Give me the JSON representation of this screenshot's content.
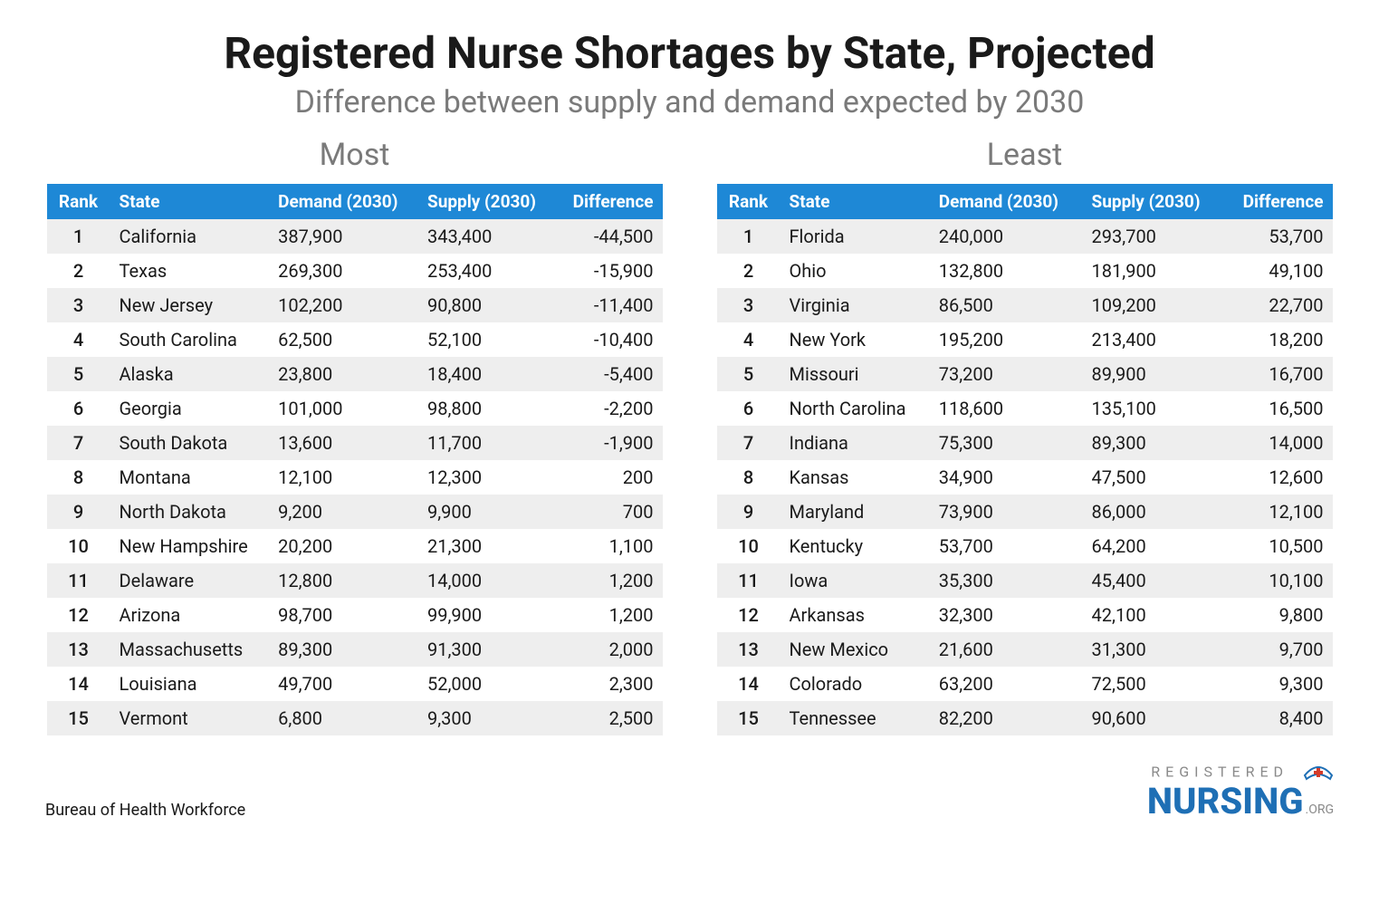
{
  "title": "Registered Nurse Shortages by State, Projected",
  "subtitle": "Difference between supply and demand expected by 2030",
  "source": "Bureau of Health Workforce",
  "logo": {
    "top": "REGISTERED",
    "main": "NURSING",
    "suffix": ".ORG"
  },
  "columns": {
    "rank": "Rank",
    "state": "State",
    "demand": "Demand (2030)",
    "supply": "Supply (2030)",
    "difference": "Difference"
  },
  "tables": {
    "most": {
      "title": "Most",
      "rows": [
        {
          "rank": "1",
          "state": "California",
          "demand": "387,900",
          "supply": "343,400",
          "diff": "-44,500"
        },
        {
          "rank": "2",
          "state": "Texas",
          "demand": "269,300",
          "supply": "253,400",
          "diff": "-15,900"
        },
        {
          "rank": "3",
          "state": "New Jersey",
          "demand": "102,200",
          "supply": "90,800",
          "diff": "-11,400"
        },
        {
          "rank": "4",
          "state": "South Carolina",
          "demand": "62,500",
          "supply": "52,100",
          "diff": "-10,400"
        },
        {
          "rank": "5",
          "state": "Alaska",
          "demand": "23,800",
          "supply": "18,400",
          "diff": "-5,400"
        },
        {
          "rank": "6",
          "state": "Georgia",
          "demand": "101,000",
          "supply": "98,800",
          "diff": "-2,200"
        },
        {
          "rank": "7",
          "state": "South Dakota",
          "demand": "13,600",
          "supply": "11,700",
          "diff": "-1,900"
        },
        {
          "rank": "8",
          "state": "Montana",
          "demand": "12,100",
          "supply": "12,300",
          "diff": "200"
        },
        {
          "rank": "9",
          "state": "North Dakota",
          "demand": "9,200",
          "supply": "9,900",
          "diff": "700"
        },
        {
          "rank": "10",
          "state": "New Hampshire",
          "demand": "20,200",
          "supply": "21,300",
          "diff": "1,100"
        },
        {
          "rank": "11",
          "state": "Delaware",
          "demand": "12,800",
          "supply": "14,000",
          "diff": "1,200"
        },
        {
          "rank": "12",
          "state": "Arizona",
          "demand": "98,700",
          "supply": "99,900",
          "diff": "1,200"
        },
        {
          "rank": "13",
          "state": "Massachusetts",
          "demand": "89,300",
          "supply": "91,300",
          "diff": "2,000"
        },
        {
          "rank": "14",
          "state": "Louisiana",
          "demand": "49,700",
          "supply": "52,000",
          "diff": "2,300"
        },
        {
          "rank": "15",
          "state": "Vermont",
          "demand": "6,800",
          "supply": "9,300",
          "diff": "2,500"
        }
      ]
    },
    "least": {
      "title": "Least",
      "rows": [
        {
          "rank": "1",
          "state": "Florida",
          "demand": "240,000",
          "supply": "293,700",
          "diff": "53,700"
        },
        {
          "rank": "2",
          "state": "Ohio",
          "demand": "132,800",
          "supply": "181,900",
          "diff": "49,100"
        },
        {
          "rank": "3",
          "state": "Virginia",
          "demand": "86,500",
          "supply": "109,200",
          "diff": "22,700"
        },
        {
          "rank": "4",
          "state": "New York",
          "demand": "195,200",
          "supply": "213,400",
          "diff": "18,200"
        },
        {
          "rank": "5",
          "state": "Missouri",
          "demand": "73,200",
          "supply": "89,900",
          "diff": "16,700"
        },
        {
          "rank": "6",
          "state": "North Carolina",
          "demand": "118,600",
          "supply": "135,100",
          "diff": "16,500"
        },
        {
          "rank": "7",
          "state": "Indiana",
          "demand": "75,300",
          "supply": "89,300",
          "diff": "14,000"
        },
        {
          "rank": "8",
          "state": "Kansas",
          "demand": "34,900",
          "supply": "47,500",
          "diff": "12,600"
        },
        {
          "rank": "9",
          "state": "Maryland",
          "demand": "73,900",
          "supply": "86,000",
          "diff": "12,100"
        },
        {
          "rank": "10",
          "state": "Kentucky",
          "demand": "53,700",
          "supply": "64,200",
          "diff": "10,500"
        },
        {
          "rank": "11",
          "state": "Iowa",
          "demand": "35,300",
          "supply": "45,400",
          "diff": "10,100"
        },
        {
          "rank": "12",
          "state": "Arkansas",
          "demand": "32,300",
          "supply": "42,100",
          "diff": "9,800"
        },
        {
          "rank": "13",
          "state": "New Mexico",
          "demand": "21,600",
          "supply": "31,300",
          "diff": "9,700"
        },
        {
          "rank": "14",
          "state": "Colorado",
          "demand": "63,200",
          "supply": "72,500",
          "diff": "9,300"
        },
        {
          "rank": "15",
          "state": "Tennessee",
          "demand": "82,200",
          "supply": "90,600",
          "diff": "8,400"
        }
      ]
    }
  },
  "styling": {
    "header_bg": "#1e88d6",
    "header_fg": "#ffffff",
    "row_odd_bg": "#eeeeee",
    "row_even_bg": "#ffffff",
    "title_color": "#1a1a1a",
    "subtitle_color": "#7a7a7a",
    "title_fontsize": 48,
    "subtitle_fontsize": 34,
    "table_fontsize": 20,
    "logo_blue": "#1e6fb5",
    "logo_red": "#d43b2a"
  }
}
